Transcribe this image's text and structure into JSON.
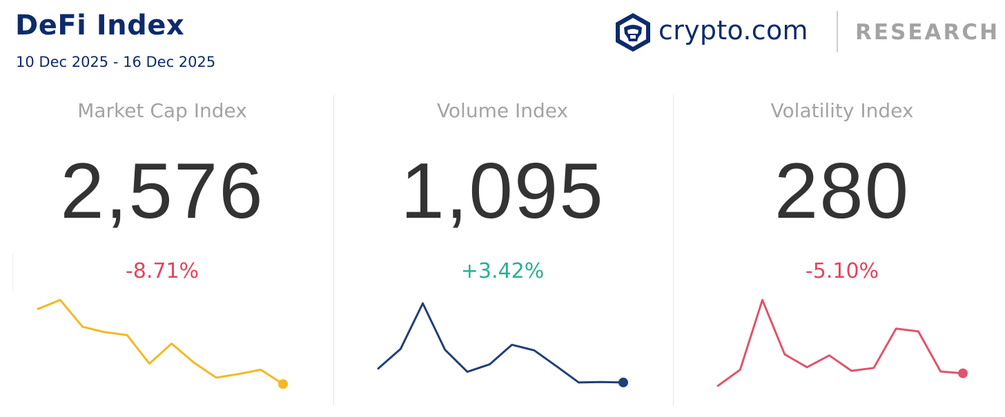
{
  "header": {
    "title": "DeFi Index",
    "date_range": "10 Dec 2025 - 16 Dec 2025"
  },
  "brand": {
    "name": "crypto.com",
    "section": "RESEARCH",
    "logo_icon": "crypto-com-lion-shield-icon",
    "color": "#0d2b6b"
  },
  "colors": {
    "negative": "#e0455f",
    "positive": "#2baf93"
  },
  "chart_data": [
    {
      "type": "line",
      "title": "Market Cap Index",
      "value": "2,576",
      "change": "-8.71%",
      "direction": "negative",
      "color": "#f5b822",
      "x": [
        1,
        2,
        3,
        4,
        5,
        6,
        7,
        8,
        9,
        10,
        11,
        12
      ],
      "values": [
        14.5,
        17.0,
        9.5,
        8.0,
        7.2,
        -0.8,
        4.8,
        -0.5,
        -4.7,
        -3.7,
        -2.5,
        -6.5
      ],
      "ylim": [
        -8,
        18
      ]
    },
    {
      "type": "line",
      "title": "Volume Index",
      "value": "1,095",
      "change": "+3.42%",
      "direction": "positive",
      "color": "#1f3f78",
      "x": [
        1,
        2,
        3,
        4,
        5,
        6,
        7,
        8,
        9,
        10,
        11,
        12
      ],
      "values": [
        -0.5,
        3.7,
        13.5,
        3.5,
        -1.2,
        0.4,
        4.6,
        3.4,
        0.0,
        -3.5,
        -3.4,
        -3.5
      ],
      "ylim": [
        -5,
        15
      ]
    },
    {
      "type": "line",
      "title": "Volatility Index",
      "value": "280",
      "change": "-5.10%",
      "direction": "negative",
      "color": "#e0536b",
      "x": [
        1,
        2,
        3,
        4,
        5,
        6,
        7,
        8,
        9,
        10,
        11,
        12
      ],
      "values": [
        -6.0,
        -1.5,
        18.0,
        2.8,
        -0.8,
        2.5,
        -1.8,
        -1.0,
        10.0,
        9.2,
        -2.0,
        -2.5
      ],
      "ylim": [
        -7,
        19
      ]
    }
  ]
}
